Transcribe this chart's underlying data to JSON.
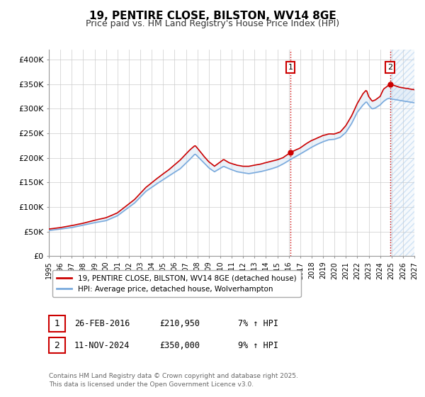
{
  "title": "19, PENTIRE CLOSE, BILSTON, WV14 8GE",
  "subtitle": "Price paid vs. HM Land Registry's House Price Index (HPI)",
  "title_fontsize": 11,
  "subtitle_fontsize": 9,
  "background_color": "#ffffff",
  "plot_background_color": "#ffffff",
  "grid_color": "#cccccc",
  "red_line_color": "#cc0000",
  "blue_line_color": "#7aaadd",
  "blue_fill_color": "#ddeeff",
  "marker1_date_x": 2016.15,
  "marker1_y": 210950,
  "marker2_date_x": 2024.87,
  "marker2_y": 350000,
  "vline1_x": 2016.15,
  "vline2_x": 2024.87,
  "ylim": [
    0,
    420000
  ],
  "xlim": [
    1995,
    2027
  ],
  "yticks": [
    0,
    50000,
    100000,
    150000,
    200000,
    250000,
    300000,
    350000,
    400000
  ],
  "ytick_labels": [
    "£0",
    "£50K",
    "£100K",
    "£150K",
    "£200K",
    "£250K",
    "£300K",
    "£350K",
    "£400K"
  ],
  "xticks": [
    1995,
    1996,
    1997,
    1998,
    1999,
    2000,
    2001,
    2002,
    2003,
    2004,
    2005,
    2006,
    2007,
    2008,
    2009,
    2010,
    2011,
    2012,
    2013,
    2014,
    2015,
    2016,
    2017,
    2018,
    2019,
    2020,
    2021,
    2022,
    2023,
    2024,
    2025,
    2026,
    2027
  ],
  "legend_red_label": "19, PENTIRE CLOSE, BILSTON, WV14 8GE (detached house)",
  "legend_blue_label": "HPI: Average price, detached house, Wolverhampton",
  "annotation1_label": "1",
  "annotation2_label": "2",
  "table_row1": [
    "1",
    "26-FEB-2016",
    "£210,950",
    "7% ↑ HPI"
  ],
  "table_row2": [
    "2",
    "11-NOV-2024",
    "£350,000",
    "9% ↑ HPI"
  ],
  "footer": "Contains HM Land Registry data © Crown copyright and database right 2025.\nThis data is licensed under the Open Government Licence v3.0.",
  "dpi": 100,
  "figsize": [
    6.0,
    5.6
  ]
}
